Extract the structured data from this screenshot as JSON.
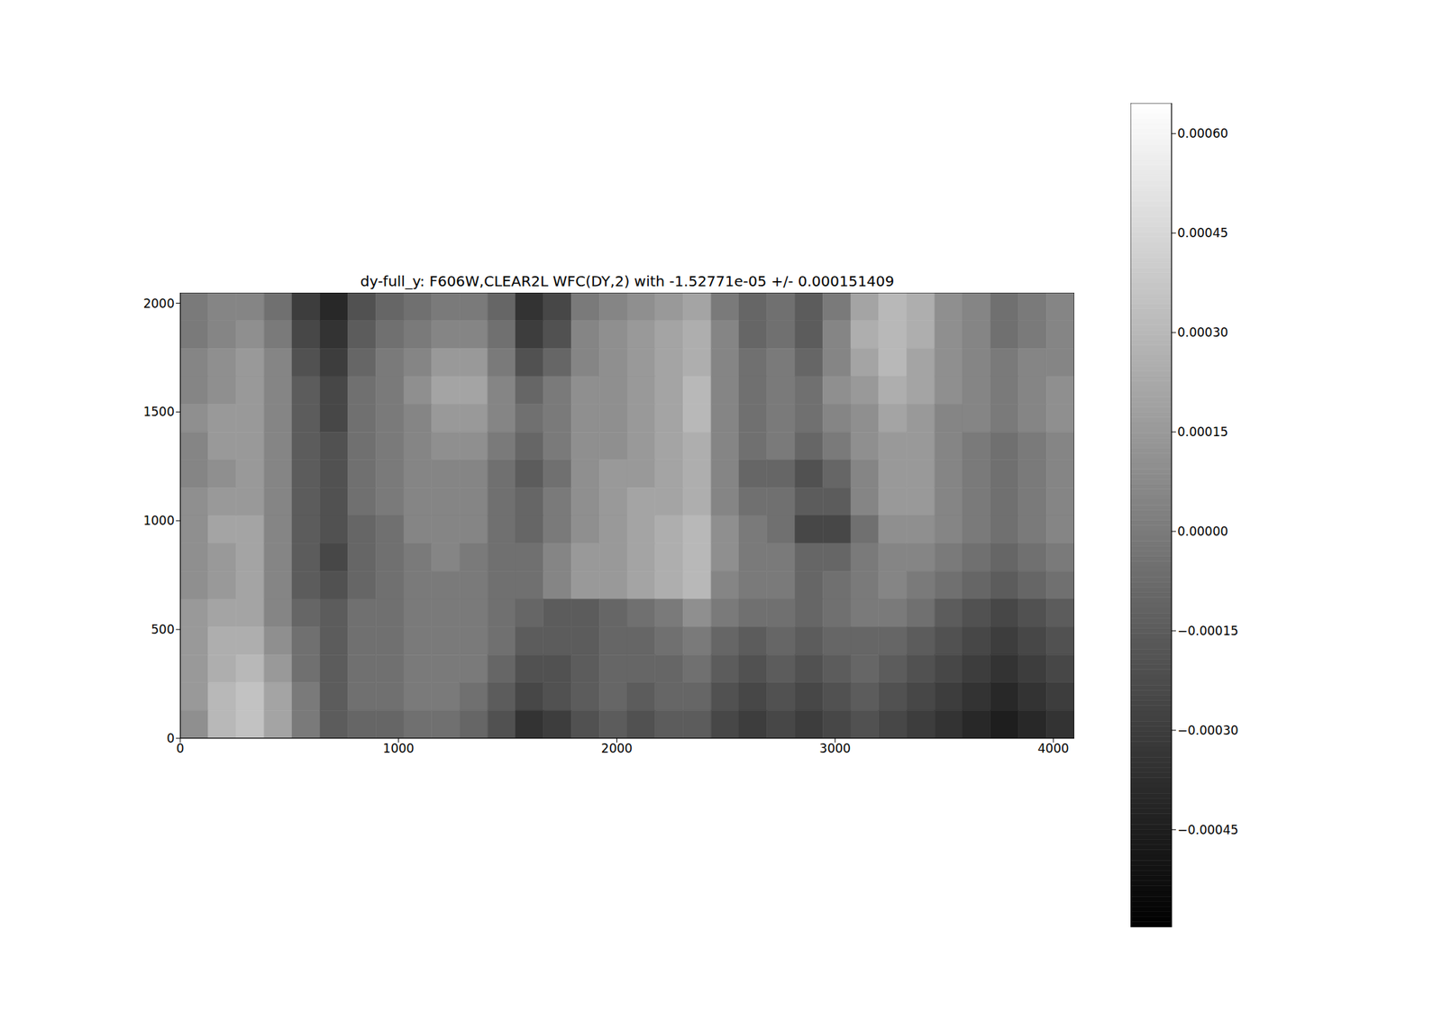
{
  "chart_data": {
    "type": "heatmap",
    "title": "dy-full_y: F606W,CLEAR2L WFC(DY,2) with -1.52771e-05 +/- 0.000151409",
    "xlim": [
      0,
      4096
    ],
    "ylim": [
      0,
      2048
    ],
    "xticks": [
      0,
      1000,
      2000,
      3000,
      4000
    ],
    "yticks": [
      0,
      500,
      1000,
      1500,
      2000
    ],
    "cells": [
      [
        0,
        5e-05,
        5e-05,
        -5e-05,
        -0.0003,
        -0.0004,
        -0.0002,
        -0.0001,
        -5e-05,
        0,
        0,
        -0.0001,
        -0.00035,
        -0.00025,
        0,
        5e-05,
        0.0001,
        0.00015,
        0.0002,
        0,
        -0.0001,
        -5e-05,
        -0.00015,
        0,
        0.0002,
        0.0003,
        0.00025,
        0.0001,
        5e-05,
        -5e-05,
        0,
        5e-05
      ],
      [
        0,
        5e-05,
        0.0001,
        0,
        -0.00025,
        -0.00035,
        -0.00015,
        -5e-05,
        0,
        5e-05,
        5e-05,
        -5e-05,
        -0.0003,
        -0.0002,
        5e-05,
        0.0001,
        0.00015,
        0.0002,
        0.00025,
        5e-05,
        -0.0001,
        -5e-05,
        -0.00015,
        5e-05,
        0.00025,
        0.0003,
        0.00025,
        0.0001,
        5e-05,
        -5e-05,
        0,
        5e-05
      ],
      [
        5e-05,
        0.0001,
        0.00015,
        5e-05,
        -0.0002,
        -0.0003,
        -0.0001,
        0,
        5e-05,
        0.00015,
        0.00015,
        0,
        -0.0002,
        -0.0001,
        5e-05,
        0.0001,
        0.00015,
        0.0002,
        0.00025,
        5e-05,
        -5e-05,
        0,
        -0.0001,
        5e-05,
        0.0002,
        0.0003,
        0.0002,
        0.0001,
        5e-05,
        0,
        5e-05,
        5e-05
      ],
      [
        5e-05,
        0.0001,
        0.00015,
        5e-05,
        -0.00015,
        -0.00025,
        -5e-05,
        0,
        0.0001,
        0.0002,
        0.0002,
        5e-05,
        -0.0001,
        0,
        0.0001,
        0.0001,
        0.00015,
        0.0002,
        0.0003,
        5e-05,
        -5e-05,
        0,
        -5e-05,
        0.0001,
        0.00015,
        0.00025,
        0.0002,
        0.0001,
        5e-05,
        0,
        5e-05,
        0.0001
      ],
      [
        0.0001,
        0.00015,
        0.00015,
        5e-05,
        -0.00015,
        -0.00025,
        -5e-05,
        0,
        5e-05,
        0.00015,
        0.00015,
        5e-05,
        -5e-05,
        0,
        0.0001,
        0.0001,
        0.00015,
        0.0002,
        0.0003,
        5e-05,
        -5e-05,
        0,
        -5e-05,
        5e-05,
        0.0001,
        0.0002,
        0.00015,
        5e-05,
        5e-05,
        0,
        5e-05,
        0.0001
      ],
      [
        5e-05,
        0.00015,
        0.00015,
        5e-05,
        -0.00015,
        -0.0002,
        -5e-05,
        0,
        5e-05,
        0.0001,
        0.0001,
        0,
        -0.0001,
        0,
        0.0001,
        0.0001,
        0.00015,
        0.0002,
        0.00025,
        5e-05,
        -5e-05,
        0,
        -0.0001,
        0,
        0.0001,
        0.00015,
        0.00015,
        5e-05,
        0,
        -5e-05,
        0,
        5e-05
      ],
      [
        5e-05,
        0.0001,
        0.00015,
        5e-05,
        -0.00015,
        -0.0002,
        -5e-05,
        0,
        5e-05,
        5e-05,
        5e-05,
        -5e-05,
        -0.00015,
        -5e-05,
        0.0001,
        0.00015,
        0.00015,
        0.0002,
        0.00025,
        5e-05,
        -0.0001,
        -0.0001,
        -0.0002,
        -0.0001,
        5e-05,
        0.00015,
        0.00015,
        5e-05,
        0,
        -5e-05,
        0,
        5e-05
      ],
      [
        0.0001,
        0.00015,
        0.00015,
        5e-05,
        -0.00015,
        -0.0002,
        -5e-05,
        0,
        5e-05,
        5e-05,
        5e-05,
        -5e-05,
        -0.0001,
        0,
        0.0001,
        0.00015,
        0.0002,
        0.0002,
        0.00025,
        5e-05,
        -5e-05,
        -5e-05,
        -0.00015,
        -0.00015,
        5e-05,
        0.00015,
        0.00015,
        5e-05,
        0,
        -5e-05,
        0,
        5e-05
      ],
      [
        0.0001,
        0.0002,
        0.0002,
        5e-05,
        -0.00015,
        -0.0002,
        -0.0001,
        -5e-05,
        5e-05,
        5e-05,
        5e-05,
        -5e-05,
        -0.0001,
        0,
        0.0001,
        0.00015,
        0.0002,
        0.00025,
        0.0003,
        0.0001,
        0,
        -5e-05,
        -0.00025,
        -0.00025,
        -5e-05,
        0.0001,
        0.0001,
        5e-05,
        0,
        -5e-05,
        0,
        5e-05
      ],
      [
        0.0001,
        0.00015,
        0.0002,
        5e-05,
        -0.00015,
        -0.00025,
        -0.0001,
        -5e-05,
        0,
        5e-05,
        0,
        -5e-05,
        -5e-05,
        5e-05,
        0.00015,
        0.00015,
        0.0002,
        0.00025,
        0.0003,
        0.0001,
        0,
        0,
        -0.0001,
        -0.0001,
        0,
        5e-05,
        5e-05,
        0,
        -5e-05,
        -0.0001,
        -5e-05,
        0
      ],
      [
        0.0001,
        0.00015,
        0.0002,
        5e-05,
        -0.00015,
        -0.0002,
        -0.0001,
        -5e-05,
        0,
        0,
        0,
        -5e-05,
        -5e-05,
        5e-05,
        0.00015,
        0.00015,
        0.0002,
        0.00025,
        0.0003,
        5e-05,
        0,
        0,
        -0.0001,
        -5e-05,
        0,
        5e-05,
        0,
        -5e-05,
        -0.0001,
        -0.00015,
        -0.0001,
        -5e-05
      ],
      [
        0.00015,
        0.0002,
        0.0002,
        5e-05,
        -0.0001,
        -0.00015,
        -5e-05,
        -5e-05,
        0,
        0,
        0,
        -5e-05,
        -0.0001,
        -0.00015,
        -0.00015,
        -0.0001,
        -5e-05,
        0,
        0.0001,
        0,
        -5e-05,
        -5e-05,
        -0.0001,
        -5e-05,
        0,
        0,
        -5e-05,
        -0.00015,
        -0.0002,
        -0.00025,
        -0.0002,
        -0.00015
      ],
      [
        0.00015,
        0.00025,
        0.00025,
        0.0001,
        -5e-05,
        -0.00015,
        -5e-05,
        -5e-05,
        0,
        0,
        0,
        -5e-05,
        -0.00015,
        -0.00015,
        -0.00015,
        -0.0001,
        -0.0001,
        -5e-05,
        0,
        -0.0001,
        -0.00015,
        -0.0001,
        -0.00015,
        -0.0001,
        -0.0001,
        -0.0001,
        -0.00015,
        -0.0002,
        -0.00025,
        -0.0003,
        -0.00025,
        -0.0002
      ],
      [
        0.00015,
        0.00025,
        0.0003,
        0.00015,
        -5e-05,
        -0.00015,
        -5e-05,
        -5e-05,
        0,
        0,
        0,
        -0.0001,
        -0.0002,
        -0.0002,
        -0.00015,
        -0.0001,
        -0.0001,
        -0.0001,
        -5e-05,
        -0.00015,
        -0.0002,
        -0.00015,
        -0.0002,
        -0.00015,
        -0.0001,
        -0.00015,
        -0.0002,
        -0.00025,
        -0.0003,
        -0.00035,
        -0.0003,
        -0.00025
      ],
      [
        0.00015,
        0.0003,
        0.00035,
        0.0002,
        0,
        -0.00015,
        -5e-05,
        -5e-05,
        0,
        0,
        -5e-05,
        -0.00015,
        -0.00025,
        -0.0002,
        -0.00015,
        -0.0001,
        -0.00015,
        -0.0001,
        -0.0001,
        -0.0002,
        -0.00025,
        -0.0002,
        -0.00025,
        -0.0002,
        -0.00015,
        -0.0002,
        -0.00025,
        -0.0003,
        -0.00035,
        -0.0004,
        -0.00035,
        -0.0003
      ],
      [
        0.0001,
        0.0003,
        0.00035,
        0.0002,
        0,
        -0.00015,
        -0.0001,
        -0.0001,
        -5e-05,
        -5e-05,
        -0.0001,
        -0.0002,
        -0.00035,
        -0.0003,
        -0.0002,
        -0.00015,
        -0.0002,
        -0.00015,
        -0.00015,
        -0.00025,
        -0.0003,
        -0.00025,
        -0.0003,
        -0.00025,
        -0.0002,
        -0.00025,
        -0.0003,
        -0.00035,
        -0.0004,
        -0.00045,
        -0.0004,
        -0.00035
      ]
    ],
    "colorbar_lim": [
      -0.000597,
      0.000646
    ],
    "colorbar_ticks": [
      {
        "value": 0.0006,
        "label": "0.00060"
      },
      {
        "value": 0.00045,
        "label": "0.00045"
      },
      {
        "value": 0.0003,
        "label": "0.00030"
      },
      {
        "value": 0.00015,
        "label": "0.00015"
      },
      {
        "value": 0,
        "label": "0.00000"
      },
      {
        "value": -0.00015,
        "label": "−0.00015"
      },
      {
        "value": -0.0003,
        "label": "−0.00030"
      },
      {
        "value": -0.00045,
        "label": "−0.00045"
      }
    ]
  }
}
